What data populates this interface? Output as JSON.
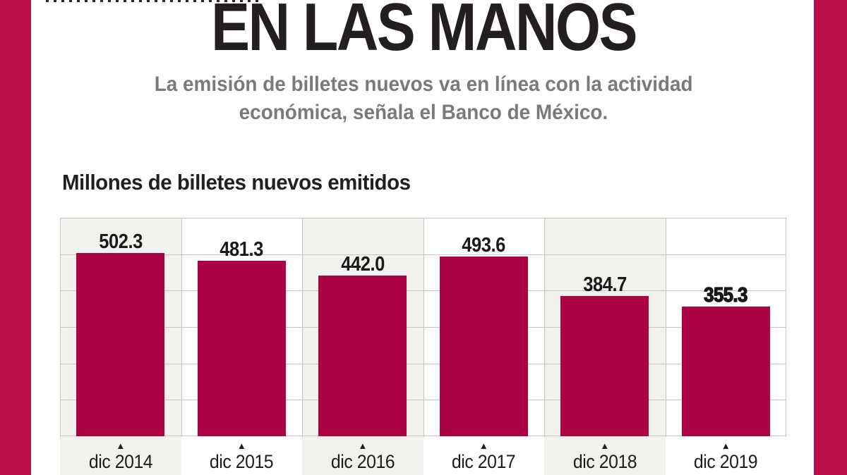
{
  "page": {
    "title": "EN LAS MANOS",
    "subtitle": {
      "line1": "La emisión de billetes nuevos va en línea con la actividad",
      "line2": "económica, señala el Banco de México."
    },
    "section_heading": "Millones de billetes nuevos emitidos"
  },
  "colors": {
    "bar": "#AB0343",
    "side_band": "#B90E46",
    "title_text": "#231F20",
    "subtitle_text": "#7A7A7A",
    "value_text": "#1A1A1A",
    "axis_text": "#1D1D1B",
    "grid_line": "#C6C5C2",
    "column_shade": "#F2F1EE",
    "background": "#FFFFFF"
  },
  "chart_data": {
    "type": "bar",
    "title": "Millones de billetes nuevos emitidos",
    "categories": [
      "dic 2014",
      "dic 2015",
      "dic 2016",
      "dic 2017",
      "dic 2018",
      "dic 2019"
    ],
    "values": [
      502.3,
      481.3,
      442.0,
      493.6,
      384.7,
      355.3
    ],
    "value_labels": [
      "502.3",
      "481.3",
      "442.0",
      "493.6",
      "384.7",
      "355.3"
    ],
    "highlight_index": 5,
    "xlabel": "",
    "ylabel": "",
    "ylim": [
      0,
      600
    ],
    "gridline_interval": 100,
    "grid": true,
    "legend": false,
    "tick_marker": "▲"
  }
}
